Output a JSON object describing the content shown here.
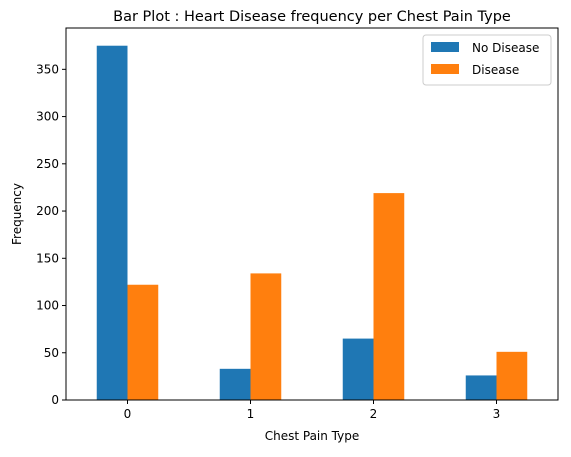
{
  "chart_data": {
    "type": "bar",
    "title": "Bar Plot : Heart Disease frequency per Chest Pain Type",
    "xlabel": "Chest Pain Type",
    "ylabel": "Frequency",
    "categories": [
      "0",
      "1",
      "2",
      "3"
    ],
    "series": [
      {
        "name": "No Disease",
        "color": "#1f77b4",
        "values": [
          375,
          33,
          65,
          26
        ]
      },
      {
        "name": "Disease",
        "color": "#ff7f0e",
        "values": [
          122,
          134,
          219,
          51
        ]
      }
    ],
    "ylim": [
      0,
      393.75
    ],
    "yticks": [
      0,
      50,
      100,
      150,
      200,
      250,
      300,
      350
    ],
    "grid": false,
    "legend_position": "top-right"
  }
}
